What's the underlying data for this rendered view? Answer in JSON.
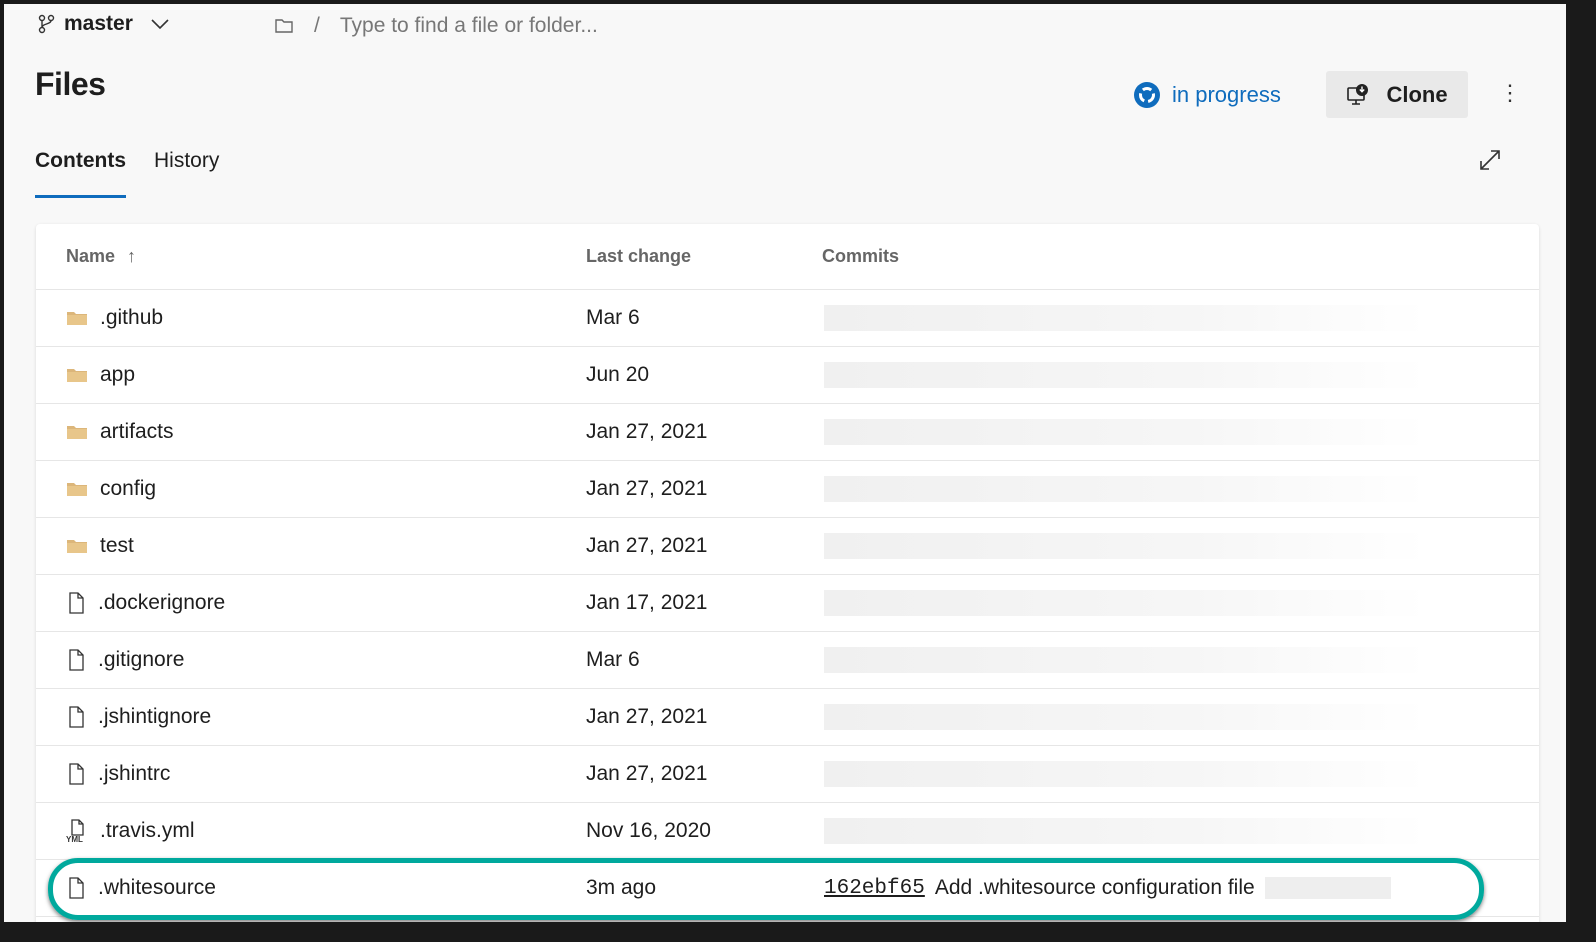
{
  "header": {
    "branch": "master",
    "path_placeholder": "Type to find a file or folder...",
    "path_separator": "/"
  },
  "page": {
    "title": "Files"
  },
  "status": {
    "label": "in progress",
    "color": "#0f6cbd"
  },
  "clone_label": "Clone",
  "tabs": [
    {
      "label": "Contents",
      "active": true
    },
    {
      "label": "History",
      "active": false
    }
  ],
  "table": {
    "columns": [
      "Name",
      "Last change",
      "Commits"
    ],
    "sort_indicator": "↑",
    "rows": [
      {
        "name": ".github",
        "type": "folder",
        "last_change": "Mar 6"
      },
      {
        "name": "app",
        "type": "folder",
        "last_change": "Jun 20"
      },
      {
        "name": "artifacts",
        "type": "folder",
        "last_change": "Jan 27, 2021"
      },
      {
        "name": "config",
        "type": "folder",
        "last_change": "Jan 27, 2021"
      },
      {
        "name": "test",
        "type": "folder",
        "last_change": "Jan 27, 2021"
      },
      {
        "name": ".dockerignore",
        "type": "file",
        "last_change": "Jan 17, 2021"
      },
      {
        "name": ".gitignore",
        "type": "file",
        "last_change": "Mar 6"
      },
      {
        "name": ".jshintignore",
        "type": "file",
        "last_change": "Jan 27, 2021"
      },
      {
        "name": ".jshintrc",
        "type": "file",
        "last_change": "Jan 27, 2021"
      },
      {
        "name": ".travis.yml",
        "type": "yml",
        "last_change": "Nov 16, 2020"
      },
      {
        "name": ".whitesource",
        "type": "file",
        "last_change": "3m ago",
        "commit_hash": "162ebf65",
        "commit_message": "Add .whitesource configuration file",
        "highlighted": true
      }
    ]
  },
  "highlight_color": "#00a99d"
}
